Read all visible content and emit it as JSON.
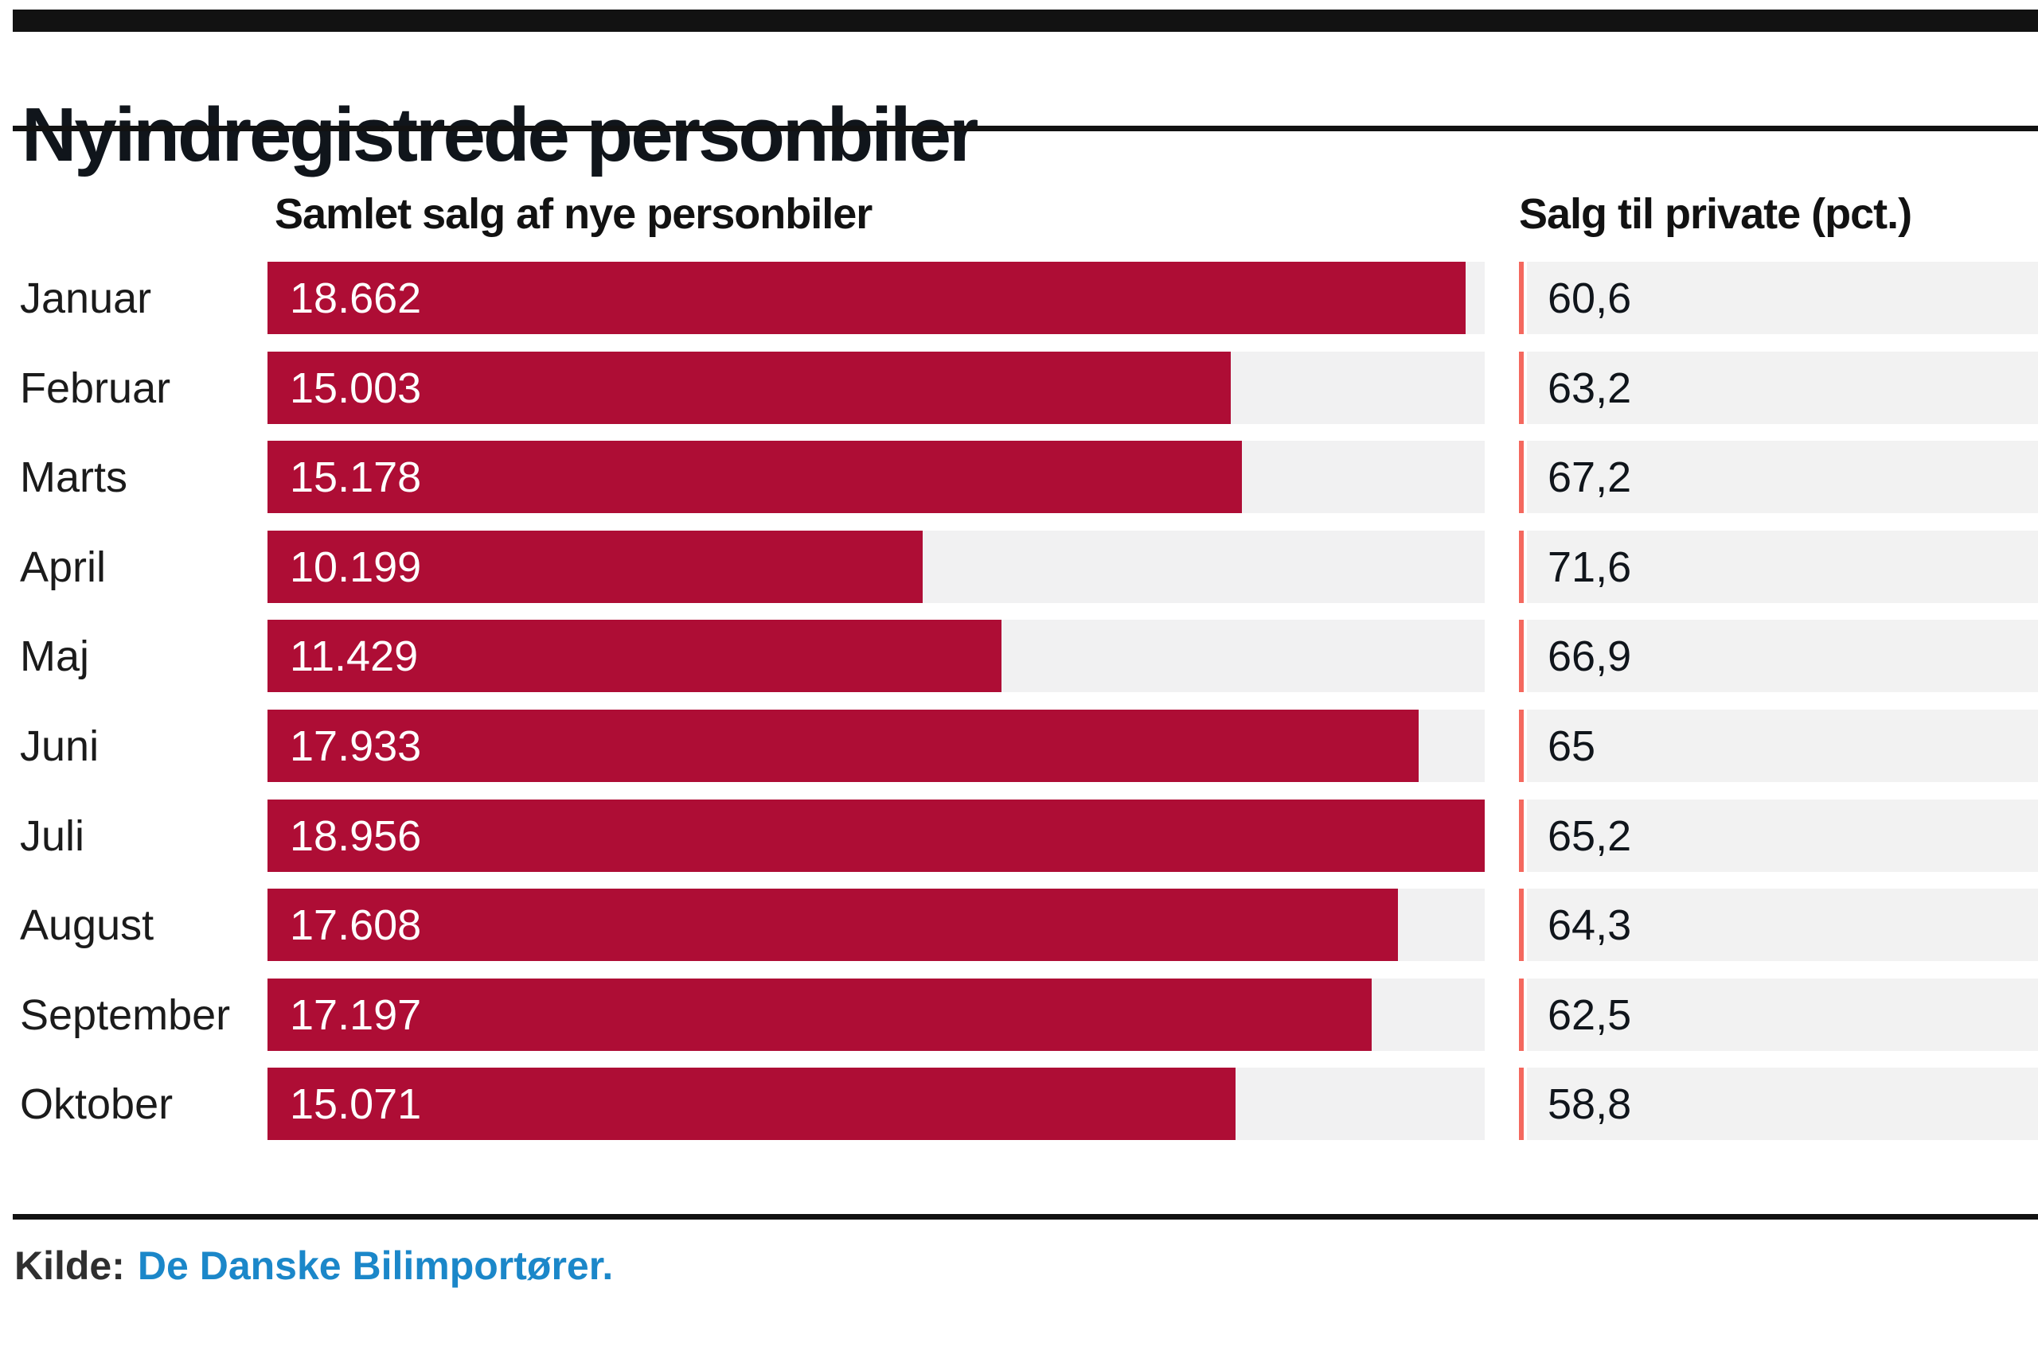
{
  "title": "Nyindregistrede personbiler",
  "columns": {
    "total_header": "Samlet salg af nye personbiler",
    "private_header": "Salg til private (pct.)"
  },
  "source": {
    "label": "Kilde:",
    "link": "De Danske Bilimportører."
  },
  "colors": {
    "bar": "#AE0D35",
    "accent_line": "#F4685E",
    "row_bg": "#F2F2F2",
    "track_bg": "#F1F1F2",
    "link": "#1B87C9",
    "rule": "#121212"
  },
  "chart_data": {
    "type": "bar",
    "orientation": "horizontal",
    "title": "Nyindregistrede personbiler",
    "categories": [
      "Januar",
      "Februar",
      "Marts",
      "April",
      "Maj",
      "Juni",
      "Juli",
      "August",
      "September",
      "Oktober"
    ],
    "series": [
      {
        "name": "Samlet salg af nye personbiler",
        "values": [
          18662,
          15003,
          15178,
          10199,
          11429,
          17933,
          18956,
          17608,
          17197,
          15071
        ],
        "labels": [
          "18.662",
          "15.003",
          "15.178",
          "10.199",
          "11.429",
          "17.933",
          "18.956",
          "17.608",
          "17.197",
          "15.071"
        ]
      },
      {
        "name": "Salg til private (pct.)",
        "values": [
          60.6,
          63.2,
          67.2,
          71.6,
          66.9,
          65,
          65.2,
          64.3,
          62.5,
          58.8
        ],
        "labels": [
          "60,6",
          "63,2",
          "67,2",
          "71,6",
          "66,9",
          "65",
          "65,2",
          "64,3",
          "62,5",
          "58,8"
        ]
      }
    ],
    "xmax": 18956,
    "grid": false,
    "legend_position": "none"
  }
}
